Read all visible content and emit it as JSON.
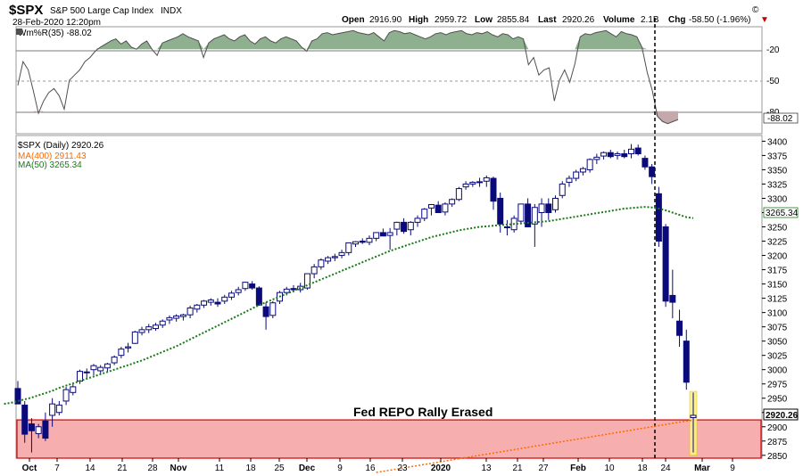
{
  "header": {
    "symbol": "$SPX",
    "name": "S&P 500 Large Cap Index",
    "exchange": "INDX",
    "date": "28-Feb-2020 12:20pm",
    "open_label": "Open",
    "open": "2916.90",
    "high_label": "High",
    "high": "2959.72",
    "low_label": "Low",
    "low": "2855.84",
    "last_label": "Last",
    "last": "2920.26",
    "volume_label": "Volume",
    "volume": "2.1B",
    "chg_label": "Chg",
    "chg": "-58.50 (-1.96%)",
    "chg_arrow": "▼",
    "copyright": "©"
  },
  "colors": {
    "candle": "#0a0a7a",
    "ma50": "#1a7a1a",
    "ma400": "#ff6a00",
    "zone": "#f6a0a0",
    "zone_border": "#d00000",
    "wr_fill_top": "#8fb08f",
    "wr_fill_bottom": "#c4a8ac",
    "highlight": "#fbf08a"
  },
  "chart_data": [
    {
      "type": "line",
      "title": "Wm%R(35) -88.02",
      "indicator": "Wm%R(35)",
      "last_value": "-88.02",
      "yticks": [
        "-20",
        "-50",
        "-80"
      ],
      "y_range": [
        -100,
        0
      ],
      "reference_lines": [
        -20,
        -50,
        -80
      ],
      "values": [
        -55,
        -32,
        -40,
        -60,
        -82,
        -70,
        -62,
        -58,
        -65,
        -78,
        -50,
        -45,
        -40,
        -32,
        -28,
        -22,
        -18,
        -15,
        -12,
        -10,
        -15,
        -12,
        -18,
        -20,
        -15,
        -12,
        -20,
        -26,
        -14,
        -12,
        -10,
        -8,
        -5,
        -8,
        -10,
        -12,
        -28,
        -14,
        -10,
        -8,
        -6,
        -10,
        -12,
        -8,
        -6,
        -12,
        -15,
        -10,
        -8,
        -12,
        -14,
        -10,
        -8,
        -10,
        -12,
        -18,
        -22,
        -12,
        -10,
        -5,
        -4,
        -6,
        -5,
        -4,
        -3,
        -2,
        -4,
        -5,
        -6,
        -4,
        -8,
        -12,
        -4,
        -2,
        -3,
        -5,
        -4,
        -6,
        -8,
        -10,
        -8,
        -5,
        -4,
        -6,
        -4,
        -3,
        -2,
        -5,
        -6,
        -4,
        -5,
        -3,
        -6,
        -8,
        -5,
        -6,
        -10,
        -8,
        -10,
        -35,
        -28,
        -45,
        -40,
        -38,
        -70,
        -50,
        -40,
        -52,
        -34,
        -8,
        -5,
        -6,
        -4,
        -3,
        -2,
        -5,
        -8,
        -3,
        -5,
        -6,
        -8,
        -18,
        -42,
        -60,
        -85,
        -90,
        -92,
        -90,
        -88.02
      ]
    },
    {
      "type": "candlestick",
      "title": "$SPX (Daily) 2920.26",
      "series": [
        {
          "name": "MA(400) 2911.43",
          "style": "dotted"
        },
        {
          "name": "MA(50) 3265.34",
          "style": "dotted"
        }
      ],
      "ylim": [
        2845,
        3410
      ],
      "yticks": [
        2850,
        2875,
        2900,
        2925,
        2950,
        2975,
        3000,
        3025,
        3050,
        3075,
        3100,
        3125,
        3150,
        3175,
        3200,
        3225,
        3250,
        3275,
        3300,
        3325,
        3350,
        3375,
        3400
      ],
      "ytick_labels": [
        "2850",
        "2875",
        "2900",
        "",
        "2950",
        "2975",
        "3000",
        "3025",
        "3050",
        "3075",
        "3100",
        "3125",
        "3150",
        "3175",
        "3200",
        "3225",
        "3250",
        "3275",
        "3300",
        "3325",
        "3350",
        "3375",
        "3400"
      ],
      "last_price_label": "2920.26",
      "ma50_label": "3265.34",
      "x_ticks": [
        {
          "label": "Oct",
          "bold": true
        },
        {
          "label": "7",
          "bold": false
        },
        {
          "label": "14",
          "bold": false
        },
        {
          "label": "21",
          "bold": false
        },
        {
          "label": "28",
          "bold": false
        },
        {
          "label": "Nov",
          "bold": true
        },
        {
          "label": "11",
          "bold": false
        },
        {
          "label": "18",
          "bold": false
        },
        {
          "label": "25",
          "bold": false
        },
        {
          "label": "Dec",
          "bold": true
        },
        {
          "label": "9",
          "bold": false
        },
        {
          "label": "16",
          "bold": false
        },
        {
          "label": "23",
          "bold": false
        },
        {
          "label": "2020",
          "bold": true
        },
        {
          "label": "13",
          "bold": false
        },
        {
          "label": "21",
          "bold": false
        },
        {
          "label": "27",
          "bold": false
        },
        {
          "label": "Feb",
          "bold": true
        },
        {
          "label": "10",
          "bold": false
        },
        {
          "label": "18",
          "bold": false
        },
        {
          "label": "24",
          "bold": false
        },
        {
          "label": "Mar",
          "bold": true
        },
        {
          "label": "9",
          "bold": false
        }
      ],
      "annotation": "Fed REPO Rally Erased",
      "support_zone": [
        2845,
        2912
      ],
      "candles_ohlc": [
        [
          2967,
          2980,
          2940,
          2940
        ],
        [
          2938,
          2945,
          2872,
          2887
        ],
        [
          2905,
          2915,
          2855,
          2893
        ],
        [
          2888,
          2905,
          2880,
          2900
        ],
        [
          2910,
          2925,
          2875,
          2880
        ],
        [
          2920,
          2950,
          2900,
          2940
        ],
        [
          2925,
          2945,
          2920,
          2938
        ],
        [
          2945,
          2970,
          2938,
          2965
        ],
        [
          2960,
          2975,
          2955,
          2970
        ],
        [
          2980,
          3000,
          2975,
          2997
        ],
        [
          2995,
          3002,
          2985,
          2996
        ],
        [
          3000,
          3010,
          2990,
          3007
        ],
        [
          2998,
          3008,
          2992,
          3004
        ],
        [
          3003,
          3012,
          2995,
          3010
        ],
        [
          3012,
          3025,
          3008,
          3022
        ],
        [
          3025,
          3040,
          3020,
          3036
        ],
        [
          3038,
          3047,
          3030,
          3040
        ],
        [
          3046,
          3068,
          3045,
          3066
        ],
        [
          3065,
          3075,
          3060,
          3070
        ],
        [
          3070,
          3080,
          3064,
          3075
        ],
        [
          3072,
          3082,
          3068,
          3078
        ],
        [
          3078,
          3088,
          3073,
          3085
        ],
        [
          3087,
          3095,
          3080,
          3091
        ],
        [
          3090,
          3097,
          3084,
          3094
        ],
        [
          3093,
          3098,
          3086,
          3096
        ],
        [
          3096,
          3112,
          3090,
          3108
        ],
        [
          3106,
          3115,
          3100,
          3113
        ],
        [
          3113,
          3122,
          3108,
          3120
        ],
        [
          3118,
          3125,
          3112,
          3122
        ],
        [
          3118,
          3125,
          3110,
          3115
        ],
        [
          3120,
          3131,
          3115,
          3127
        ],
        [
          3127,
          3138,
          3122,
          3134
        ],
        [
          3135,
          3145,
          3130,
          3140
        ],
        [
          3142,
          3154,
          3138,
          3153
        ],
        [
          3150,
          3155,
          3140,
          3143
        ],
        [
          3143,
          3146,
          3112,
          3113
        ],
        [
          3110,
          3118,
          3070,
          3093
        ],
        [
          3095,
          3120,
          3090,
          3117
        ],
        [
          3120,
          3138,
          3115,
          3135
        ],
        [
          3135,
          3145,
          3130,
          3141
        ],
        [
          3142,
          3148,
          3135,
          3140
        ],
        [
          3140,
          3152,
          3135,
          3146
        ],
        [
          3143,
          3160,
          3140,
          3168
        ],
        [
          3168,
          3185,
          3160,
          3180
        ],
        [
          3180,
          3195,
          3175,
          3192
        ],
        [
          3190,
          3199,
          3185,
          3196
        ],
        [
          3196,
          3203,
          3190,
          3198
        ],
        [
          3200,
          3210,
          3195,
          3205
        ],
        [
          3205,
          3215,
          3200,
          3222
        ],
        [
          3220,
          3225,
          3215,
          3224
        ],
        [
          3225,
          3230,
          3220,
          3223
        ],
        [
          3223,
          3235,
          3218,
          3230
        ],
        [
          3230,
          3240,
          3225,
          3240
        ],
        [
          3240,
          3247,
          3235,
          3234
        ],
        [
          3235,
          3248,
          3210,
          3240
        ],
        [
          3246,
          3259,
          3235,
          3258
        ],
        [
          3258,
          3265,
          3238,
          3242
        ],
        [
          3245,
          3260,
          3235,
          3258
        ],
        [
          3258,
          3270,
          3250,
          3265
        ],
        [
          3265,
          3283,
          3260,
          3281
        ],
        [
          3283,
          3290,
          3270,
          3289
        ],
        [
          3288,
          3295,
          3280,
          3275
        ],
        [
          3276,
          3293,
          3270,
          3290
        ],
        [
          3290,
          3300,
          3285,
          3298
        ],
        [
          3298,
          3320,
          3295,
          3317
        ],
        [
          3320,
          3330,
          3315,
          3325
        ],
        [
          3325,
          3330,
          3320,
          3328
        ],
        [
          3328,
          3336,
          3320,
          3329
        ],
        [
          3330,
          3340,
          3320,
          3336
        ],
        [
          3335,
          3338,
          3280,
          3295
        ],
        [
          3300,
          3310,
          3240,
          3255
        ],
        [
          3250,
          3262,
          3235,
          3250
        ],
        [
          3245,
          3270,
          3240,
          3265
        ],
        [
          3260,
          3290,
          3255,
          3290
        ],
        [
          3290,
          3300,
          3280,
          3250
        ],
        [
          3255,
          3290,
          3215,
          3284
        ],
        [
          3275,
          3300,
          3250,
          3290
        ],
        [
          3290,
          3300,
          3262,
          3275
        ],
        [
          3280,
          3305,
          3275,
          3300
        ],
        [
          3305,
          3330,
          3300,
          3325
        ],
        [
          3328,
          3340,
          3320,
          3335
        ],
        [
          3335,
          3350,
          3330,
          3346
        ],
        [
          3346,
          3355,
          3340,
          3352
        ],
        [
          3350,
          3370,
          3345,
          3368
        ],
        [
          3368,
          3378,
          3360,
          3372
        ],
        [
          3374,
          3382,
          3368,
          3380
        ],
        [
          3380,
          3385,
          3370,
          3373
        ],
        [
          3375,
          3382,
          3368,
          3378
        ],
        [
          3378,
          3385,
          3370,
          3373
        ],
        [
          3378,
          3395,
          3370,
          3386
        ],
        [
          3388,
          3394,
          3375,
          3378
        ],
        [
          3370,
          3375,
          3350,
          3355
        ],
        [
          3355,
          3360,
          3325,
          3338
        ],
        [
          3308,
          3320,
          3215,
          3225
        ],
        [
          3250,
          3255,
          3110,
          3120
        ],
        [
          3130,
          3175,
          3090,
          3118
        ],
        [
          3085,
          3105,
          3040,
          3060
        ],
        [
          3050,
          3070,
          2965,
          2978
        ],
        [
          2916,
          2960,
          2855,
          2920
        ]
      ],
      "ma50": [
        2940,
        2942,
        2945,
        2948,
        2951,
        2955,
        2959,
        2963,
        2968,
        2972,
        2976,
        2980,
        2984,
        2988,
        2992,
        2996,
        3000,
        3004,
        3008,
        3012,
        3016,
        3021,
        3026,
        3031,
        3036,
        3041,
        3047,
        3053,
        3059,
        3065,
        3071,
        3077,
        3083,
        3089,
        3095,
        3101,
        3107,
        3113,
        3118,
        3123,
        3128,
        3133,
        3138,
        3143,
        3148,
        3153,
        3158,
        3163,
        3168,
        3173,
        3178,
        3183,
        3188,
        3193,
        3198,
        3203,
        3208,
        3212,
        3216,
        3220,
        3224,
        3228,
        3232,
        3235,
        3238,
        3241,
        3244,
        3246,
        3248,
        3250,
        3251,
        3252,
        3253,
        3254,
        3255,
        3256,
        3257,
        3258,
        3259,
        3260,
        3262,
        3264,
        3266,
        3268,
        3270,
        3272,
        3274,
        3276,
        3278,
        3280,
        3282,
        3283,
        3284,
        3285,
        3284,
        3282,
        3279,
        3275,
        3271,
        3267,
        3265.34
      ],
      "ma400": [
        2820,
        2822,
        2824,
        2826,
        2828,
        2830,
        2832,
        2834,
        2836,
        2838,
        2840,
        2842,
        2844,
        2846,
        2848,
        2850,
        2852,
        2854,
        2856,
        2858,
        2860,
        2862,
        2864,
        2866,
        2868,
        2870,
        2872,
        2874,
        2876,
        2878,
        2880,
        2882,
        2884,
        2886,
        2888,
        2890,
        2892,
        2894,
        2896,
        2898,
        2900,
        2902,
        2904,
        2906,
        2908,
        2910,
        2911.43
      ]
    }
  ]
}
